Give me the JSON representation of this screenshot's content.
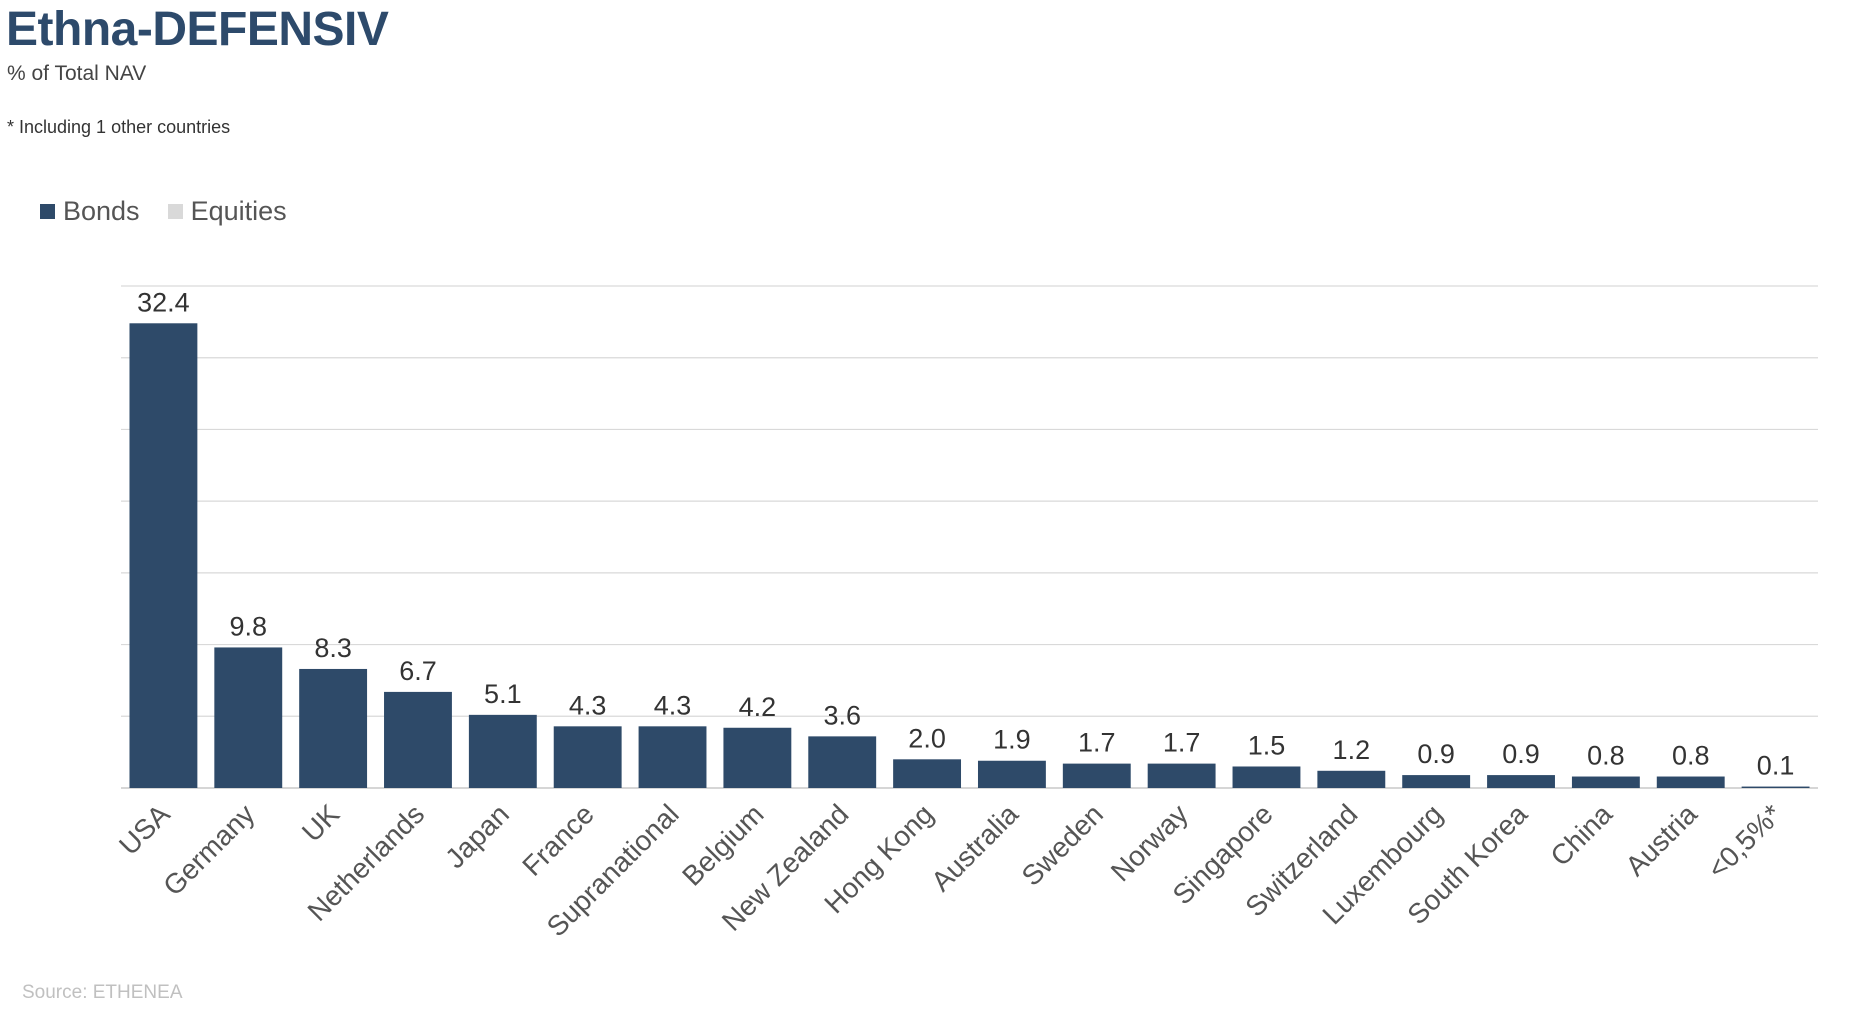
{
  "header": {
    "title": "Ethna-DEFENSIV",
    "subtitle": "% of Total NAV",
    "note": "* Including 1 other countries"
  },
  "legend": [
    {
      "label": "Bonds",
      "color": "#2e4a69"
    },
    {
      "label": "Equities",
      "color": "#d9d9d9"
    }
  ],
  "footer": {
    "source": "Source: ETHENEA"
  },
  "chart_data": {
    "type": "bar",
    "title": "Ethna-DEFENSIV",
    "subtitle": "% of Total NAV",
    "categories": [
      "USA",
      "Germany",
      "UK",
      "Netherlands",
      "Japan",
      "France",
      "Supranational",
      "Belgium",
      "New Zealand",
      "Hong Kong",
      "Australia",
      "Sweden",
      "Norway",
      "Singapore",
      "Switzerland",
      "Luxembourg",
      "South Korea",
      "China",
      "Austria",
      "<0,5%*"
    ],
    "series": [
      {
        "name": "Bonds",
        "values": [
          32.4,
          9.8,
          8.3,
          6.7,
          5.1,
          4.3,
          4.3,
          4.2,
          3.6,
          2.0,
          1.9,
          1.7,
          1.7,
          1.5,
          1.2,
          0.9,
          0.9,
          0.8,
          0.8,
          0.1
        ],
        "color": "#2e4a69"
      },
      {
        "name": "Equities",
        "values": [
          0,
          0,
          0,
          0,
          0,
          0,
          0,
          0,
          0,
          0,
          0,
          0,
          0,
          0,
          0,
          0,
          0,
          0,
          0,
          0
        ],
        "color": "#d9d9d9"
      }
    ],
    "data_labels": [
      "32.4",
      "9.8",
      "8.3",
      "6.7",
      "5.1",
      "4.3",
      "4.3",
      "4.2",
      "3.6",
      "2.0",
      "1.9",
      "1.7",
      "1.7",
      "1.5",
      "1.2",
      "0.9",
      "0.9",
      "0.8",
      "0.8",
      "0.1"
    ],
    "xlabel": "",
    "ylabel": "",
    "ylim": [
      0,
      35
    ],
    "grid": true,
    "legend_position": "top-left",
    "gridline_color": "#d9d9d9"
  }
}
